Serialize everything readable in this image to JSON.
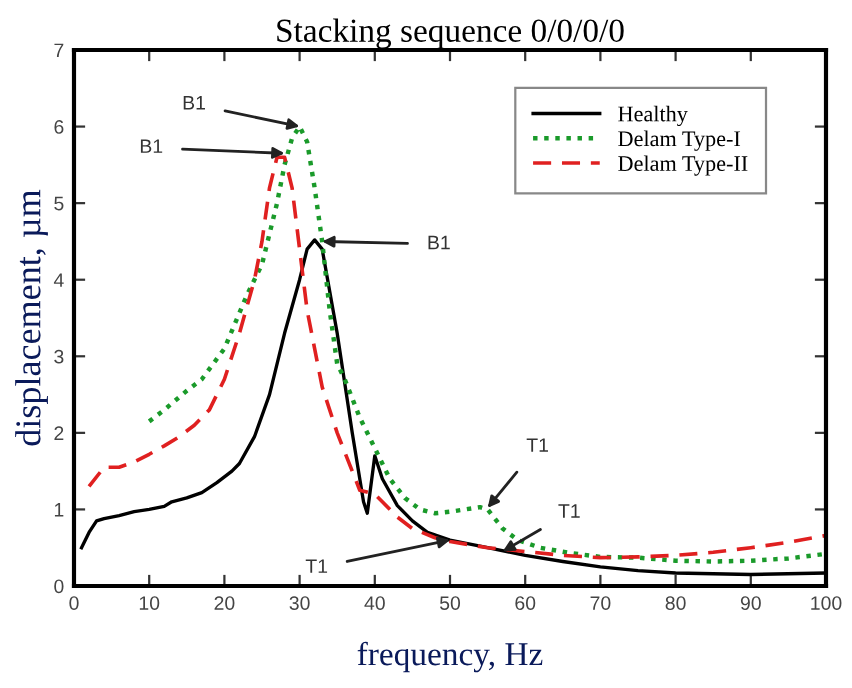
{
  "chart_data": {
    "type": "line",
    "title": "Stacking sequence 0/0/0/0",
    "xlabel": "frequency, Hz",
    "ylabel": "displacement, µm",
    "xlim": [
      0,
      100
    ],
    "xticks": [
      0,
      10,
      20,
      30,
      40,
      50,
      60,
      70,
      80,
      90,
      100
    ],
    "ylim": [
      0,
      7
    ],
    "yticks": [
      0,
      1,
      2,
      3,
      4,
      5,
      6,
      7
    ],
    "grid": false,
    "legend": "top right",
    "series": [
      {
        "name": "Healthy",
        "color": "#000000",
        "line_style": "solid",
        "x": [
          1,
          2,
          3,
          4,
          6,
          8,
          10,
          12,
          13,
          15,
          17,
          19,
          21,
          22,
          24,
          26,
          28,
          30,
          31,
          32,
          33,
          35,
          37,
          38.5,
          39,
          40,
          41,
          43,
          45,
          47,
          50,
          55,
          60,
          65,
          70,
          75,
          80,
          90,
          100
        ],
        "values": [
          0.5,
          0.7,
          0.85,
          0.88,
          0.92,
          0.97,
          1.0,
          1.04,
          1.1,
          1.15,
          1.22,
          1.35,
          1.5,
          1.6,
          1.95,
          2.5,
          3.3,
          4.0,
          4.4,
          4.52,
          4.4,
          3.3,
          2.0,
          1.1,
          0.95,
          1.7,
          1.4,
          1.05,
          0.85,
          0.7,
          0.6,
          0.5,
          0.4,
          0.32,
          0.25,
          0.2,
          0.17,
          0.15,
          0.17
        ]
      },
      {
        "name": "Delam Type-I",
        "color": "#1a9a2a",
        "line_style": "dotted",
        "x": [
          10,
          12,
          15,
          17,
          20,
          23,
          25,
          27,
          28,
          29,
          30,
          31,
          32,
          33,
          34,
          35,
          36,
          38,
          40,
          42,
          44,
          46,
          48,
          50,
          52,
          54,
          55,
          57,
          59,
          62,
          66,
          70,
          75,
          80,
          85,
          90,
          95,
          100
        ],
        "values": [
          2.15,
          2.3,
          2.55,
          2.7,
          3.1,
          3.8,
          4.2,
          5.0,
          5.5,
          5.85,
          6.0,
          5.8,
          5.2,
          4.5,
          3.6,
          2.9,
          2.7,
          2.2,
          1.8,
          1.4,
          1.15,
          1.0,
          0.95,
          0.97,
          1.0,
          1.03,
          1.0,
          0.75,
          0.6,
          0.5,
          0.43,
          0.38,
          0.37,
          0.33,
          0.32,
          0.33,
          0.36,
          0.42
        ]
      },
      {
        "name": "Delam Type-II",
        "color": "#e02020",
        "line_style": "dashed",
        "x": [
          2,
          4,
          6,
          8,
          10,
          12,
          14,
          16,
          18,
          20,
          22,
          24,
          25,
          26,
          27,
          28,
          29,
          30,
          31,
          33,
          35,
          37,
          38,
          40,
          41,
          43,
          45,
          48,
          50,
          55,
          60,
          65,
          70,
          75,
          80,
          85,
          90,
          95,
          100
        ],
        "values": [
          1.3,
          1.55,
          1.55,
          1.62,
          1.72,
          1.83,
          1.95,
          2.1,
          2.3,
          2.7,
          3.3,
          4.0,
          4.5,
          5.2,
          5.6,
          5.6,
          5.2,
          4.4,
          3.6,
          2.6,
          2.0,
          1.5,
          1.25,
          1.2,
          1.1,
          0.9,
          0.75,
          0.63,
          0.58,
          0.5,
          0.45,
          0.4,
          0.37,
          0.38,
          0.4,
          0.44,
          0.5,
          0.57,
          0.66
        ]
      }
    ],
    "annotations": [
      {
        "text": "B1",
        "x": 30,
        "y": 6.0
      },
      {
        "text": "B1",
        "x": 28,
        "y": 5.65
      },
      {
        "text": "B1",
        "x": 33,
        "y": 4.5
      },
      {
        "text": "T1",
        "x": 55,
        "y": 1.02
      },
      {
        "text": "T1",
        "x": 57,
        "y": 0.45
      },
      {
        "text": "T1",
        "x": 50,
        "y": 0.6
      }
    ]
  }
}
